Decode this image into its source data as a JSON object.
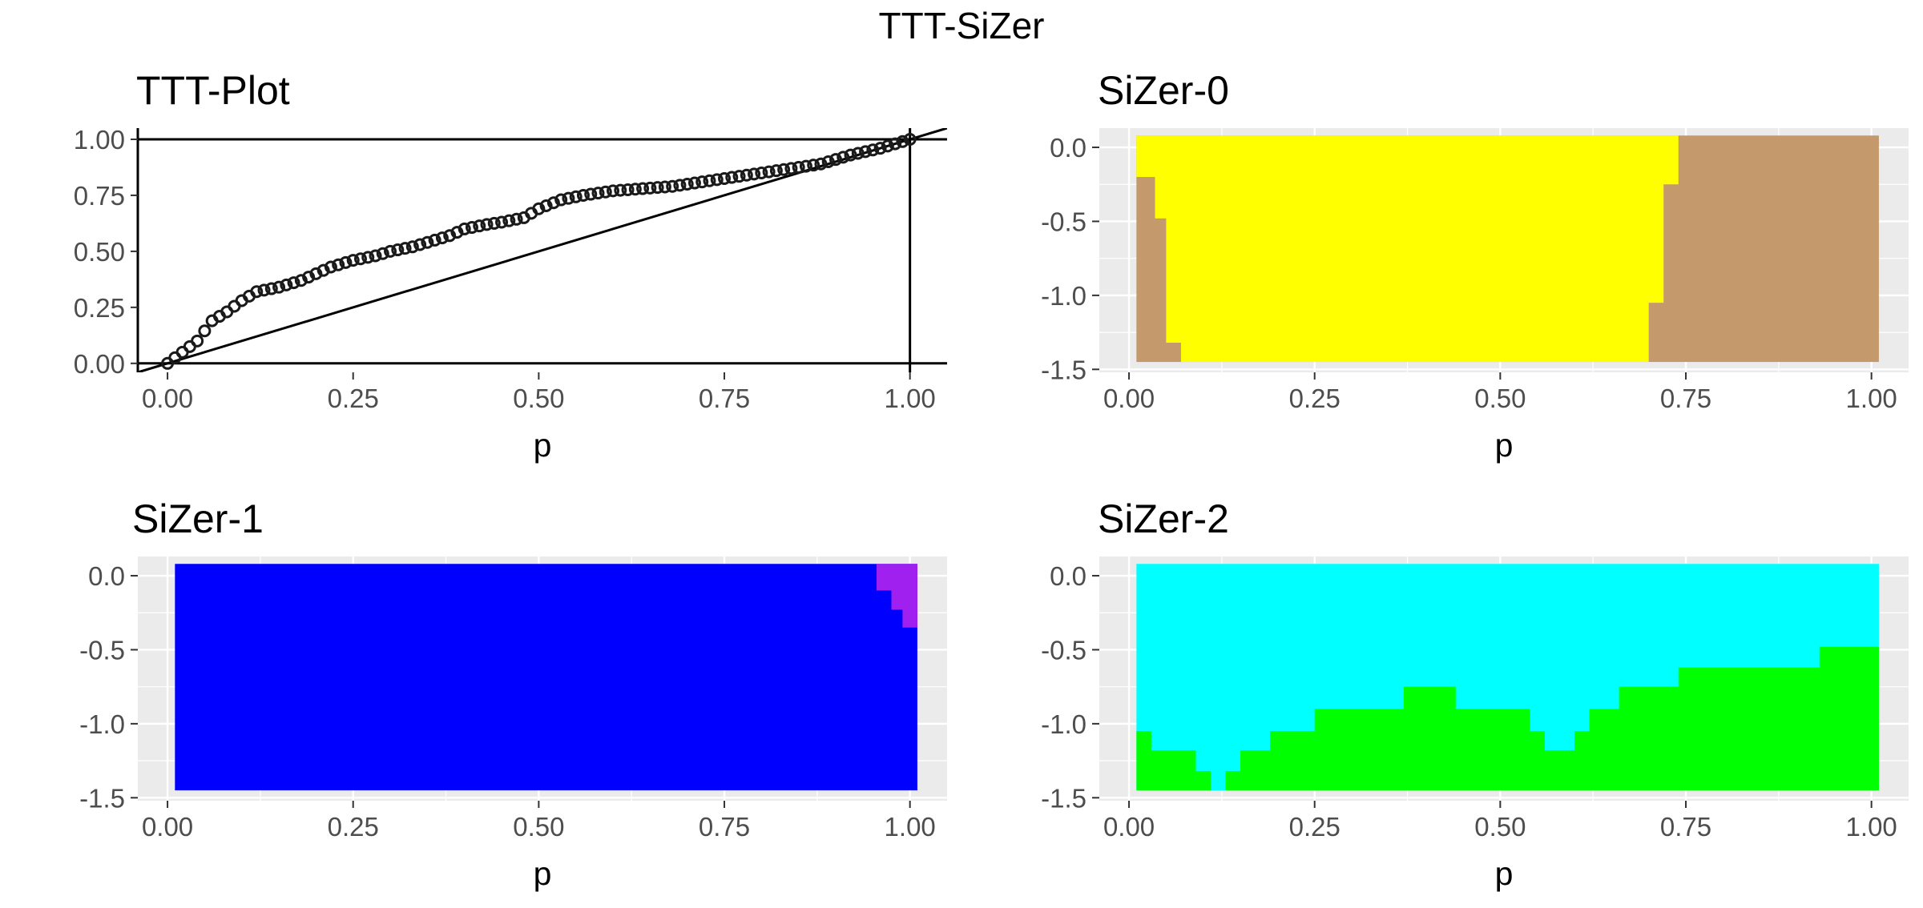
{
  "figure": {
    "title": "TTT-SiZer"
  },
  "chart_data": [
    {
      "id": "ttt",
      "type": "scatter",
      "title": "TTT-Plot",
      "xlabel": "p",
      "ylabel": "",
      "xlim": [
        -0.04,
        1.05
      ],
      "ylim": [
        -0.04,
        1.05
      ],
      "xticks": [
        "0.00",
        "0.25",
        "0.50",
        "0.75",
        "1.00"
      ],
      "yticks": [
        "0.00",
        "0.25",
        "0.50",
        "0.75",
        "1.00"
      ],
      "background": "#ffffff",
      "grid": false,
      "reference_lines": {
        "diagonal": "y = x",
        "horizontal": [
          0,
          1
        ],
        "vertical": [
          1
        ]
      },
      "point_color": "#1a1a1a",
      "curve": {
        "x": [
          0,
          0.02,
          0.04,
          0.06,
          0.08,
          0.1,
          0.12,
          0.15,
          0.18,
          0.2,
          0.22,
          0.25,
          0.28,
          0.3,
          0.33,
          0.36,
          0.38,
          0.4,
          0.43,
          0.45,
          0.48,
          0.5,
          0.53,
          0.56,
          0.6,
          0.64,
          0.68,
          0.72,
          0.76,
          0.8,
          0.84,
          0.88,
          0.92,
          0.96,
          1.0
        ],
        "y": [
          0,
          0.05,
          0.1,
          0.19,
          0.23,
          0.28,
          0.32,
          0.34,
          0.37,
          0.4,
          0.43,
          0.46,
          0.48,
          0.5,
          0.52,
          0.55,
          0.57,
          0.6,
          0.62,
          0.63,
          0.65,
          0.69,
          0.73,
          0.75,
          0.77,
          0.78,
          0.79,
          0.81,
          0.83,
          0.85,
          0.87,
          0.89,
          0.93,
          0.96,
          1.0
        ]
      }
    },
    {
      "id": "sizer0",
      "type": "heatmap",
      "title": "SiZer-0",
      "xlabel": "p",
      "ylabel": "",
      "xlim": [
        -0.04,
        1.05
      ],
      "ylim": [
        -1.52,
        0.13
      ],
      "xticks": [
        "0.00",
        "0.25",
        "0.50",
        "0.75",
        "1.00"
      ],
      "yticks": [
        "0.0",
        "-0.5",
        "-1.0",
        "-1.5"
      ],
      "x_extent": [
        0.01,
        1.01
      ],
      "y_extent": [
        -1.45,
        0.08
      ],
      "background": "#ebebeb",
      "grid": true,
      "base_color": "#c49a6c",
      "regions": [
        {
          "color": "#ffff00",
          "polygon": [
            [
              0.01,
              0.08
            ],
            [
              0.74,
              0.08
            ],
            [
              0.74,
              -0.25
            ],
            [
              0.72,
              -0.25
            ],
            [
              0.72,
              -1.05
            ],
            [
              0.7,
              -1.05
            ],
            [
              0.7,
              -1.45
            ],
            [
              0.07,
              -1.45
            ],
            [
              0.07,
              -1.32
            ],
            [
              0.05,
              -1.32
            ],
            [
              0.05,
              -0.48
            ],
            [
              0.035,
              -0.48
            ],
            [
              0.035,
              -0.2
            ],
            [
              0.01,
              -0.2
            ]
          ]
        }
      ]
    },
    {
      "id": "sizer1",
      "type": "heatmap",
      "title": "SiZer-1",
      "xlabel": "p",
      "ylabel": "",
      "xlim": [
        -0.04,
        1.05
      ],
      "ylim": [
        -1.52,
        0.13
      ],
      "xticks": [
        "0.00",
        "0.25",
        "0.50",
        "0.75",
        "1.00"
      ],
      "yticks": [
        "0.0",
        "-0.5",
        "-1.0",
        "-1.5"
      ],
      "x_extent": [
        0.01,
        1.01
      ],
      "y_extent": [
        -1.45,
        0.08
      ],
      "background": "#ebebeb",
      "grid": true,
      "base_color": "#0000ff",
      "regions": [
        {
          "color": "#a020f0",
          "polygon": [
            [
              0.955,
              0.08
            ],
            [
              1.01,
              0.08
            ],
            [
              1.01,
              -0.35
            ],
            [
              0.99,
              -0.35
            ],
            [
              0.99,
              -0.23
            ],
            [
              0.975,
              -0.23
            ],
            [
              0.975,
              -0.1
            ],
            [
              0.955,
              -0.1
            ]
          ]
        }
      ]
    },
    {
      "id": "sizer2",
      "type": "heatmap",
      "title": "SiZer-2",
      "xlabel": "p",
      "ylabel": "",
      "xlim": [
        -0.04,
        1.05
      ],
      "ylim": [
        -1.52,
        0.13
      ],
      "xticks": [
        "0.00",
        "0.25",
        "0.50",
        "0.75",
        "1.00"
      ],
      "yticks": [
        "0.0",
        "-0.5",
        "-1.0",
        "-1.5"
      ],
      "x_extent": [
        0.01,
        1.01
      ],
      "y_extent": [
        -1.45,
        0.08
      ],
      "background": "#ebebeb",
      "grid": true,
      "base_color": "#00ffff",
      "regions": [
        {
          "color": "#00ff00",
          "polygon": [
            [
              0.01,
              -1.45
            ],
            [
              1.01,
              -1.45
            ],
            [
              1.01,
              -0.48
            ],
            [
              0.93,
              -0.48
            ],
            [
              0.93,
              -0.62
            ],
            [
              0.74,
              -0.62
            ],
            [
              0.74,
              -0.75
            ],
            [
              0.66,
              -0.75
            ],
            [
              0.66,
              -0.9
            ],
            [
              0.62,
              -0.9
            ],
            [
              0.62,
              -1.05
            ],
            [
              0.6,
              -1.05
            ],
            [
              0.6,
              -1.18
            ],
            [
              0.56,
              -1.18
            ],
            [
              0.56,
              -1.05
            ],
            [
              0.54,
              -1.05
            ],
            [
              0.54,
              -0.9
            ],
            [
              0.44,
              -0.9
            ],
            [
              0.44,
              -0.75
            ],
            [
              0.37,
              -0.75
            ],
            [
              0.37,
              -0.9
            ],
            [
              0.25,
              -0.9
            ],
            [
              0.25,
              -1.05
            ],
            [
              0.19,
              -1.05
            ],
            [
              0.19,
              -1.18
            ],
            [
              0.15,
              -1.18
            ],
            [
              0.15,
              -1.32
            ],
            [
              0.13,
              -1.32
            ],
            [
              0.13,
              -1.45
            ],
            [
              0.11,
              -1.45
            ],
            [
              0.11,
              -1.32
            ],
            [
              0.09,
              -1.32
            ],
            [
              0.09,
              -1.18
            ],
            [
              0.03,
              -1.18
            ],
            [
              0.03,
              -1.05
            ],
            [
              0.01,
              -1.05
            ]
          ]
        }
      ]
    }
  ]
}
